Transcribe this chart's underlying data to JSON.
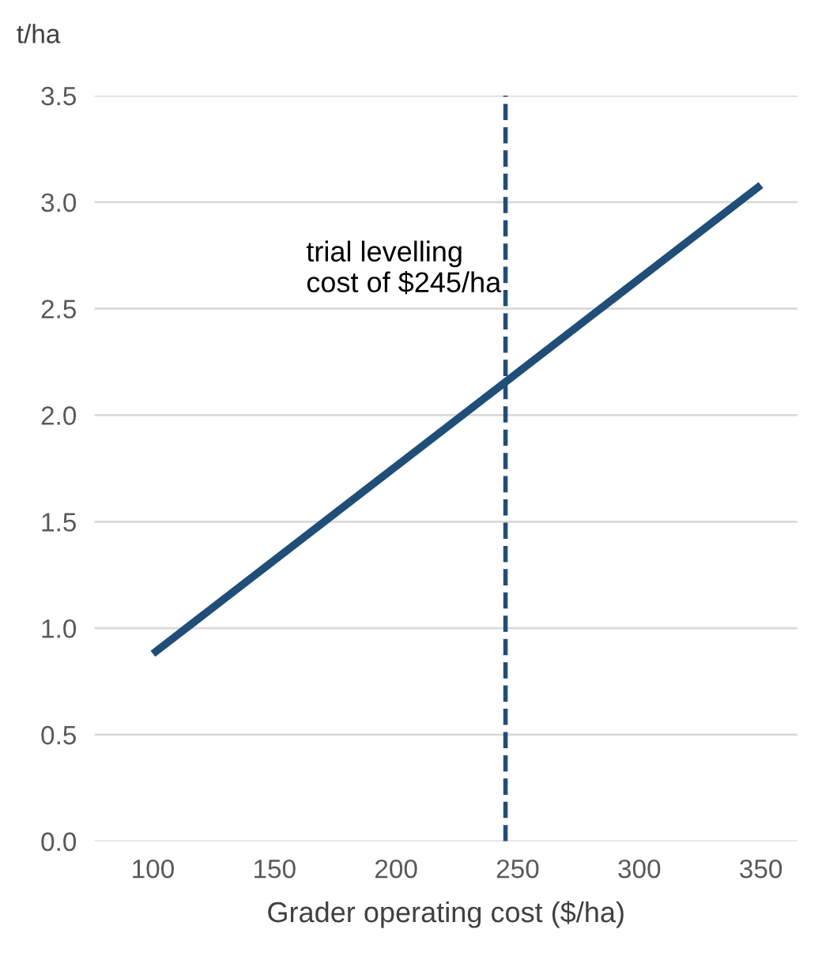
{
  "chart_data": {
    "type": "line",
    "xlabel": "Grader operating cost ($/ha)",
    "ylabel": "t/ha",
    "x": [
      100,
      150,
      200,
      250,
      300,
      350
    ],
    "series": [
      {
        "color": "#1f4e79",
        "values": [
          0.88,
          1.32,
          1.76,
          2.2,
          2.64,
          3.08
        ]
      }
    ],
    "xlim": [
      76,
      365
    ],
    "xticks": [
      100,
      150,
      200,
      250,
      300,
      350
    ],
    "ylim": [
      0,
      3.5
    ],
    "yticks": [
      {
        "value": 0,
        "label": "0.0"
      },
      {
        "value": 0.5,
        "label": "0.5"
      },
      {
        "value": 1,
        "label": "1.0"
      },
      {
        "value": 1.5,
        "label": "1.5"
      },
      {
        "value": 2,
        "label": "2.0"
      },
      {
        "value": 2.5,
        "label": "2.5"
      },
      {
        "value": 3,
        "label": "3.0"
      },
      {
        "value": 3.5,
        "label": "3.5"
      }
    ],
    "grid": "y",
    "marker": "none",
    "line_style": "solid",
    "ref_lines": [
      {
        "axis": "x",
        "value": 245,
        "label": "trial levelling\ncost of $245/ha",
        "color": "#1f4e79",
        "line_style": "dashed"
      }
    ]
  }
}
